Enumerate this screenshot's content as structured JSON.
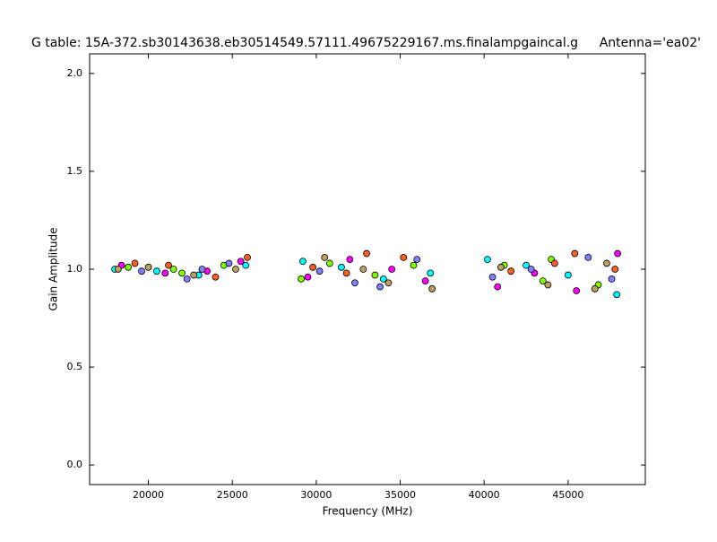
{
  "chart_data": {
    "type": "scatter",
    "title": "G table: 15A-372.sb30143638.eb30514549.57111.49675229167.ms.finalampgaincal.g",
    "antenna": "Antenna='ea02'",
    "xlabel": "Frequency (MHz)",
    "ylabel": "Gain Amplitude",
    "xlim": [
      16500,
      49600
    ],
    "ylim": [
      -0.1,
      2.1
    ],
    "xticks": [
      20000,
      25000,
      30000,
      35000,
      40000,
      45000
    ],
    "yticks": [
      {
        "value": 0,
        "label": "0.0"
      },
      {
        "value": 0.5,
        "label": "0.5"
      },
      {
        "value": 1,
        "label": "1.0"
      },
      {
        "value": 1.5,
        "label": "1.5"
      },
      {
        "value": 2,
        "label": "2.0"
      }
    ],
    "series": [
      {
        "color": "#00ffff",
        "x": [
          18000,
          20500,
          23000,
          25800,
          29200,
          31500,
          34000,
          36800,
          40200,
          42500,
          45000,
          47900
        ],
        "values": [
          1.0,
          0.99,
          0.97,
          1.02,
          1.04,
          1.01,
          0.95,
          0.98,
          1.05,
          1.02,
          0.97,
          0.87
        ]
      },
      {
        "color": "#ff00ff",
        "x": [
          18400,
          21000,
          23500,
          25500,
          29500,
          32000,
          34500,
          36500,
          40800,
          43000,
          45500,
          47950
        ],
        "values": [
          1.02,
          0.98,
          0.99,
          1.04,
          0.96,
          1.05,
          1.0,
          0.94,
          0.91,
          0.98,
          0.89,
          1.08
        ]
      },
      {
        "color": "#80ff00",
        "x": [
          18800,
          21500,
          22000,
          24500,
          29100,
          30800,
          33500,
          35800,
          41200,
          43500,
          44000,
          46800
        ],
        "values": [
          1.01,
          1.0,
          0.98,
          1.02,
          0.95,
          1.03,
          0.97,
          1.02,
          1.02,
          0.94,
          1.05,
          0.92
        ]
      },
      {
        "color": "#ff6020",
        "x": [
          19200,
          21200,
          24000,
          25900,
          29800,
          31800,
          33000,
          35200,
          41600,
          44200,
          45400,
          47800
        ],
        "values": [
          1.03,
          1.02,
          0.96,
          1.06,
          1.01,
          0.98,
          1.08,
          1.06,
          0.99,
          1.03,
          1.08,
          1.0
        ]
      },
      {
        "color": "#8080ff",
        "x": [
          19600,
          22300,
          23200,
          24800,
          30200,
          32300,
          33800,
          36000,
          40500,
          42800,
          46200,
          47600
        ],
        "values": [
          0.99,
          0.95,
          1.0,
          1.03,
          0.99,
          0.93,
          0.91,
          1.05,
          0.96,
          1.0,
          1.06,
          0.95
        ]
      },
      {
        "color": "#c0a060",
        "x": [
          18200,
          20000,
          22700,
          25200,
          30500,
          32800,
          34300,
          36900,
          41000,
          43800,
          46600,
          47300
        ],
        "values": [
          1.0,
          1.01,
          0.97,
          1.0,
          1.06,
          1.0,
          0.93,
          0.9,
          1.01,
          0.92,
          0.9,
          1.03
        ]
      }
    ]
  }
}
